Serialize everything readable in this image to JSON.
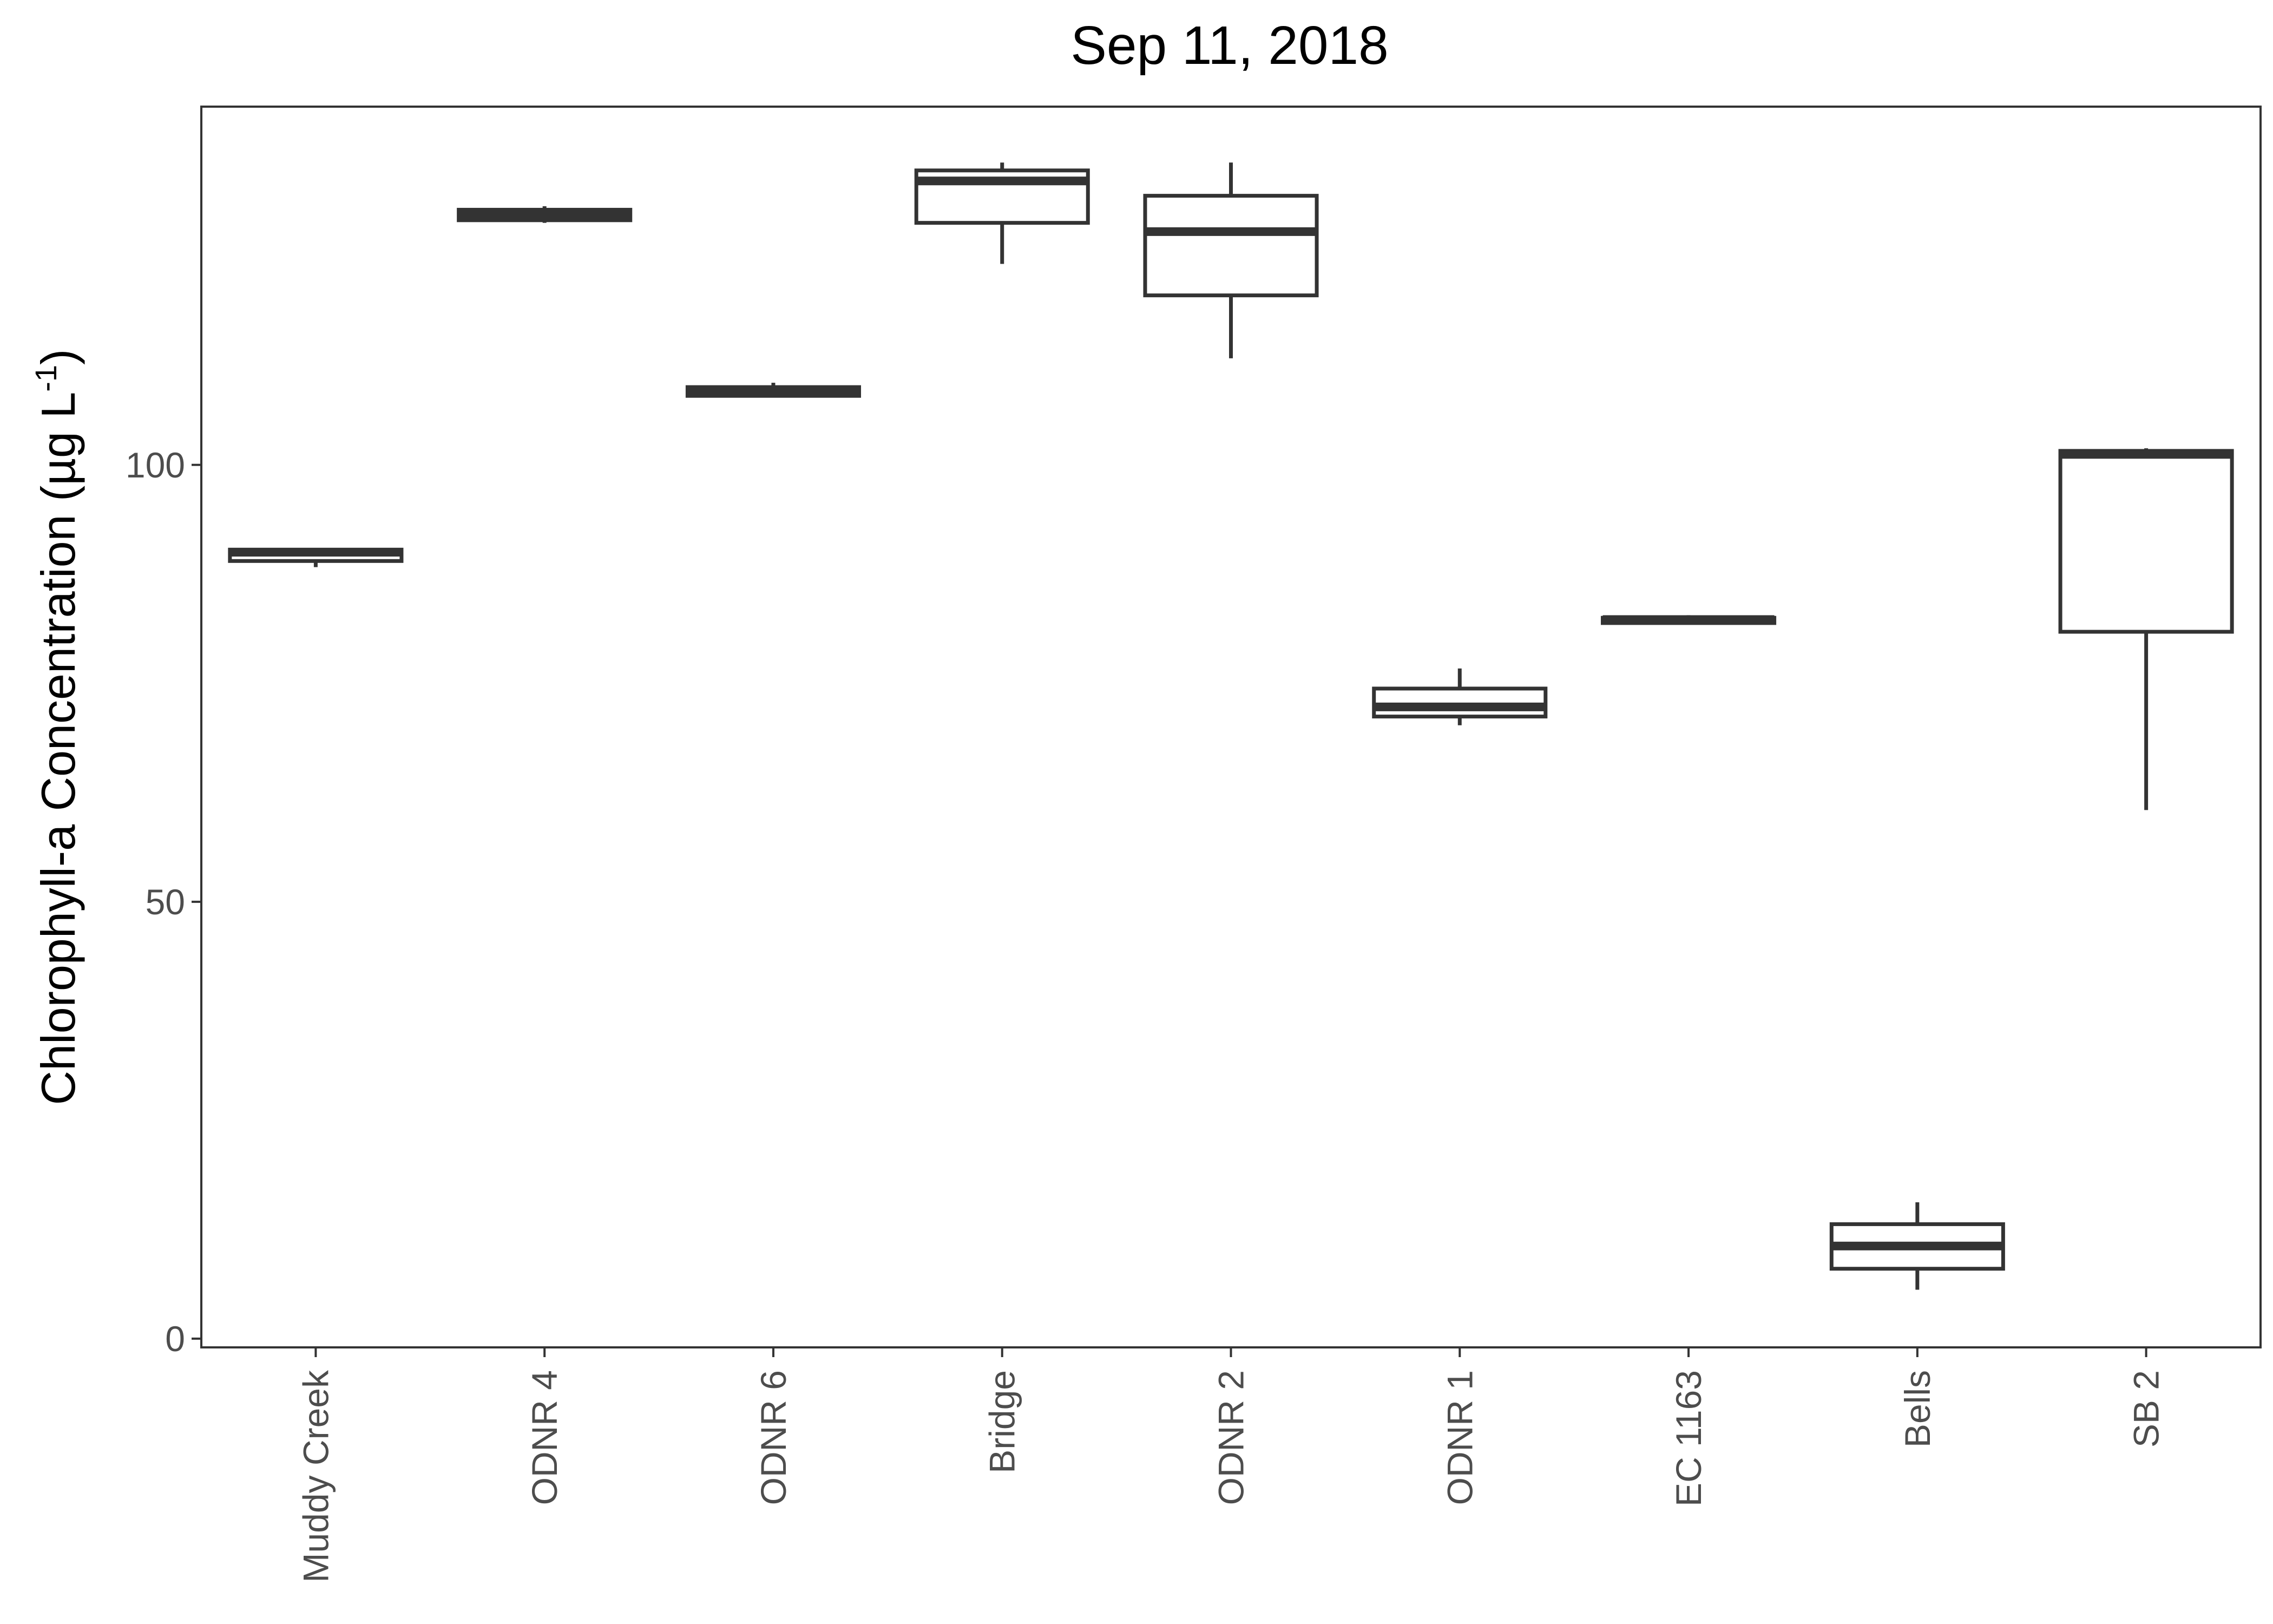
{
  "chart_data": {
    "type": "boxplot",
    "title": "Sep 11, 2018",
    "xlabel": "",
    "ylabel": {
      "prefix": "Chlorophyll-a Concentration (µg L",
      "superscript": "-1",
      "suffix": ")"
    },
    "ylim": [
      -1,
      141
    ],
    "yticks": [
      0,
      50,
      100
    ],
    "grid": false,
    "legend": "none",
    "colors": {
      "box_stroke": "#333333",
      "box_fill": "#ffffff",
      "tick_text": "#4d4d4d",
      "title_text": "#000000"
    },
    "categories": [
      "Muddy Creek",
      "ODNR 4",
      "ODNR 6",
      "Bridge",
      "ODNR 2",
      "ODNR 1",
      "EC 1163",
      "Bells",
      "SB 2"
    ],
    "boxes": [
      {
        "category": "Muddy Creek",
        "min": 88.3,
        "q1": 89.0,
        "median": 90.0,
        "q3": 90.3,
        "max": 90.5
      },
      {
        "category": "ODNR 4",
        "min": 127.7,
        "q1": 128.0,
        "median": 128.7,
        "q3": 129.2,
        "max": 129.6
      },
      {
        "category": "ODNR 6",
        "min": 107.7,
        "q1": 107.9,
        "median": 108.5,
        "q3": 108.9,
        "max": 109.4
      },
      {
        "category": "Bridge",
        "min": 123.0,
        "q1": 127.7,
        "median": 132.5,
        "q3": 133.7,
        "max": 134.6
      },
      {
        "category": "ODNR 2",
        "min": 112.2,
        "q1": 119.4,
        "median": 126.7,
        "q3": 130.8,
        "max": 134.6
      },
      {
        "category": "ODNR 1",
        "min": 70.2,
        "q1": 71.2,
        "median": 72.3,
        "q3": 74.4,
        "max": 76.7
      },
      {
        "category": "EC 1163",
        "min": 81.8,
        "q1": 81.9,
        "median": 82.3,
        "q3": 82.5,
        "max": 82.8
      },
      {
        "category": "Bells",
        "min": 5.6,
        "q1": 8.0,
        "median": 10.6,
        "q3": 13.1,
        "max": 15.6
      },
      {
        "category": "SB 2",
        "min": 60.5,
        "q1": 80.9,
        "median": 101.2,
        "q3": 101.6,
        "max": 101.9
      }
    ]
  }
}
